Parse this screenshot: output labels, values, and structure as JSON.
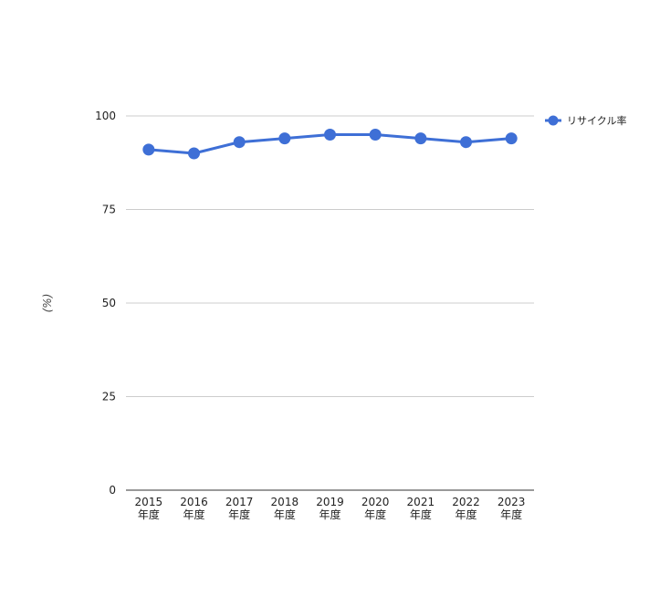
{
  "chart_data": {
    "type": "line",
    "title": "",
    "xlabel": "",
    "ylabel": "(%)",
    "categories": [
      [
        "2015",
        "年度"
      ],
      [
        "2016",
        "年度"
      ],
      [
        "2017",
        "年度"
      ],
      [
        "2018",
        "年度"
      ],
      [
        "2019",
        "年度"
      ],
      [
        "2020",
        "年度"
      ],
      [
        "2021",
        "年度"
      ],
      [
        "2022",
        "年度"
      ],
      [
        "2023",
        "年度"
      ]
    ],
    "series": [
      {
        "name": "リサイクル率",
        "values": [
          91,
          90,
          93,
          94,
          95,
          95,
          94,
          93,
          94
        ],
        "color": "#3e6fd6"
      }
    ],
    "ylim": [
      0,
      100
    ],
    "yticks": [
      0,
      25,
      50,
      75,
      100
    ],
    "grid": true,
    "legend_position": "right-top"
  }
}
